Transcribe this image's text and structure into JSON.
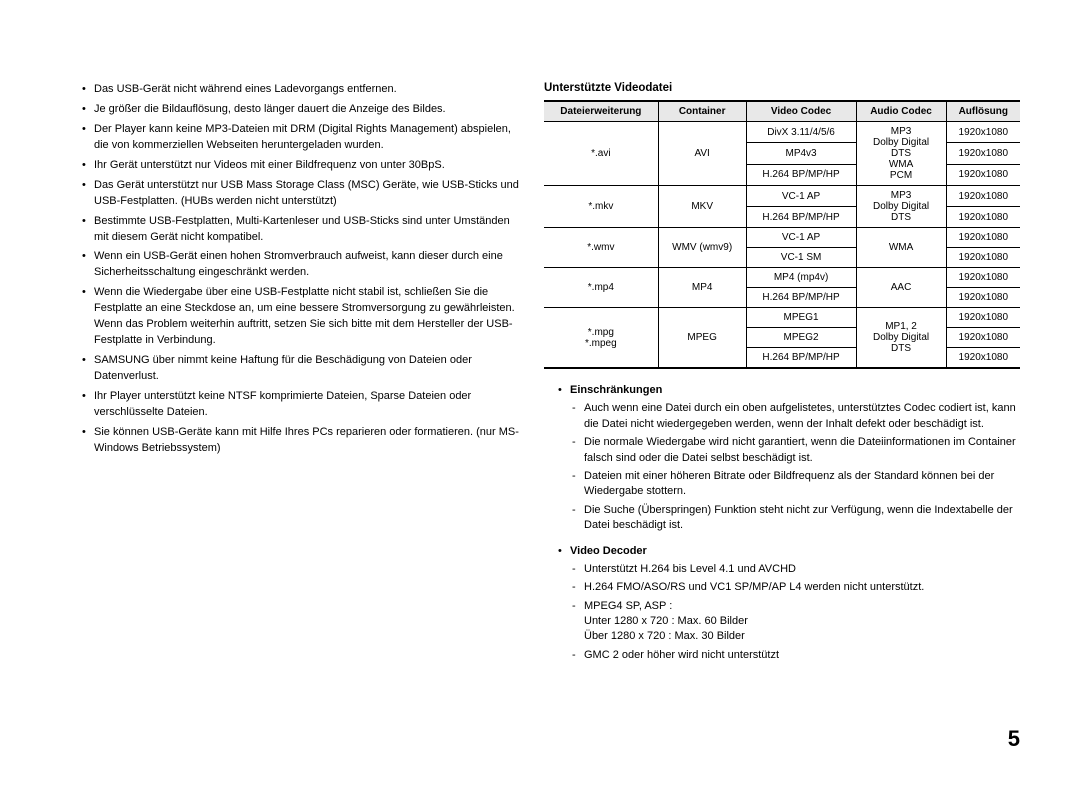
{
  "left_bullets": [
    "Das USB-Gerät nicht während eines Ladevorgangs entfernen.",
    "Je größer die Bildauflösung, desto länger dauert die Anzeige des Bildes.",
    "Der Player kann keine MP3-Dateien mit DRM (Digital Rights Management) abspielen, die von kommerziellen Webseiten heruntergeladen wurden.",
    "Ihr Gerät unterstützt nur Videos mit einer Bildfrequenz von unter 30BpS.",
    "Das Gerät unterstützt nur USB Mass Storage Class (MSC) Geräte, wie USB-Sticks und USB-Festplatten. (HUBs werden nicht unterstützt)",
    "Bestimmte USB-Festplatten, Multi-Kartenleser und USB-Sticks sind unter Umständen mit diesem Gerät nicht kompatibel.",
    "Wenn ein USB-Gerät einen hohen Stromverbrauch aufweist, kann dieser durch eine Sicherheitsschaltung eingeschränkt werden.",
    "Wenn die Wiedergabe über eine USB-Festplatte nicht stabil ist, schließen Sie die Festplatte an eine Steckdose an, um eine bessere Stromversorgung zu gewährleisten.\nWenn das Problem weiterhin auftritt, setzen Sie sich bitte mit dem Hersteller der USB-Festplatte in Verbindung.",
    "SAMSUNG über nimmt keine Haftung für die Beschädigung von Dateien oder Datenverlust.",
    "Ihr Player unterstützt keine NTSF komprimierte Dateien, Sparse Dateien oder verschlüsselte Dateien.",
    "Sie können USB-Geräte kann mit Hilfe Ihres PCs reparieren oder formatieren. (nur MS-Windows Betriebssystem)"
  ],
  "right": {
    "title": "Unterstützte Videodatei",
    "headers": [
      "Dateierweiterung",
      "Container",
      "Video Codec",
      "Audio Codec",
      "Auflösung"
    ],
    "groups": [
      {
        "ext": "*.avi",
        "container": "AVI",
        "video_rows": [
          "DivX 3.11/4/5/6",
          "MP4v3",
          "H.264 BP/MP/HP"
        ],
        "audio_lines": [
          "MP3",
          "Dolby Digital",
          "DTS",
          "WMA",
          "PCM"
        ],
        "res": [
          "1920x1080",
          "1920x1080",
          "1920x1080"
        ]
      },
      {
        "ext": "*.mkv",
        "container": "MKV",
        "video_rows": [
          "VC-1 AP",
          "H.264 BP/MP/HP"
        ],
        "audio_lines": [
          "MP3",
          "Dolby Digital",
          "DTS"
        ],
        "res": [
          "1920x1080",
          "1920x1080"
        ]
      },
      {
        "ext": "*.wmv",
        "container": "WMV (wmv9)",
        "video_rows": [
          "VC-1 AP",
          "VC-1 SM"
        ],
        "audio_lines": [
          "WMA"
        ],
        "res": [
          "1920x1080",
          "1920x1080"
        ]
      },
      {
        "ext": "*.mp4",
        "container": "MP4",
        "video_rows": [
          "MP4 (mp4v)",
          "H.264 BP/MP/HP"
        ],
        "audio_lines": [
          "AAC"
        ],
        "res": [
          "1920x1080",
          "1920x1080"
        ]
      },
      {
        "ext": "*.mpg\n*.mpeg",
        "container": "MPEG",
        "video_rows": [
          "MPEG1",
          "MPEG2",
          "H.264 BP/MP/HP"
        ],
        "audio_lines": [
          "MP1, 2",
          "Dolby Digital",
          "DTS"
        ],
        "res": [
          "1920x1080",
          "1920x1080",
          "1920x1080"
        ]
      }
    ],
    "einschr_title": "Einschränkungen",
    "einschr_items": [
      "Auch wenn eine Datei durch ein oben aufgelistetes, unterstütztes Codec codiert ist, kann die Datei nicht wiedergegeben werden, wenn der Inhalt defekt oder beschädigt ist.",
      "Die normale Wiedergabe wird nicht garantiert, wenn die Dateiinformationen im Container falsch sind oder die Datei selbst beschädigt ist.",
      "Dateien mit einer höheren Bitrate oder Bildfrequenz als der Standard können bei der Wiedergabe stottern.",
      "Die Suche (Überspringen) Funktion steht nicht zur Verfügung, wenn die Indextabelle der Datei beschädigt ist."
    ],
    "decoder_title": "Video Decoder",
    "decoder_items": [
      "Unterstützt H.264 bis Level 4.1 und AVCHD",
      "H.264 FMO/ASO/RS und VC1 SP/MP/AP L4 werden nicht unterstützt.",
      "MPEG4 SP, ASP :\nUnter 1280 x 720 : Max. 60 Bilder\nÜber 1280 x 720 : Max. 30 Bilder",
      "GMC 2 oder höher wird nicht unterstützt"
    ]
  },
  "page_number": "5"
}
